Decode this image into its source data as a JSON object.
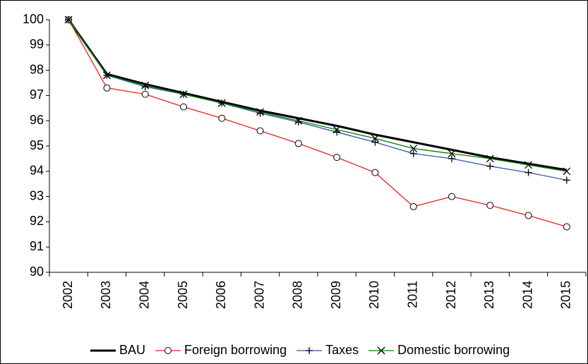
{
  "chart_data": {
    "type": "line",
    "categories": [
      "2002",
      "2003",
      "2004",
      "2005",
      "2006",
      "2007",
      "2008",
      "2009",
      "2010",
      "2011",
      "2012",
      "2013",
      "2014",
      "2015"
    ],
    "ylim": [
      90,
      100
    ],
    "yticks": [
      90,
      91,
      92,
      93,
      94,
      95,
      96,
      97,
      98,
      99,
      100
    ],
    "legend": "bottom",
    "series": [
      {
        "name": "BAU",
        "color": "#000000",
        "width": 3,
        "marker": null,
        "values": [
          100,
          97.85,
          97.45,
          97.1,
          96.75,
          96.4,
          96.1,
          95.8,
          95.45,
          95.15,
          94.85,
          94.55,
          94.3,
          94.05
        ]
      },
      {
        "name": "Foreign borrowing",
        "color": "#e8211f",
        "width": 1.3,
        "marker": "circle",
        "values": [
          100,
          97.3,
          97.05,
          96.55,
          96.1,
          95.6,
          95.1,
          94.55,
          93.95,
          92.6,
          93.0,
          92.65,
          92.25,
          91.8
        ]
      },
      {
        "name": "Taxes",
        "color": "#3355aa",
        "width": 1.3,
        "marker": "plus",
        "values": [
          100,
          97.8,
          97.35,
          97.05,
          96.7,
          96.3,
          95.95,
          95.55,
          95.15,
          94.7,
          94.5,
          94.2,
          93.95,
          93.65
        ]
      },
      {
        "name": "Domestic borrowing",
        "color": "#008000",
        "width": 1.3,
        "marker": "x",
        "values": [
          100,
          97.8,
          97.4,
          97.05,
          96.7,
          96.35,
          96.0,
          95.65,
          95.3,
          94.9,
          94.7,
          94.5,
          94.25,
          94.0
        ]
      }
    ]
  }
}
